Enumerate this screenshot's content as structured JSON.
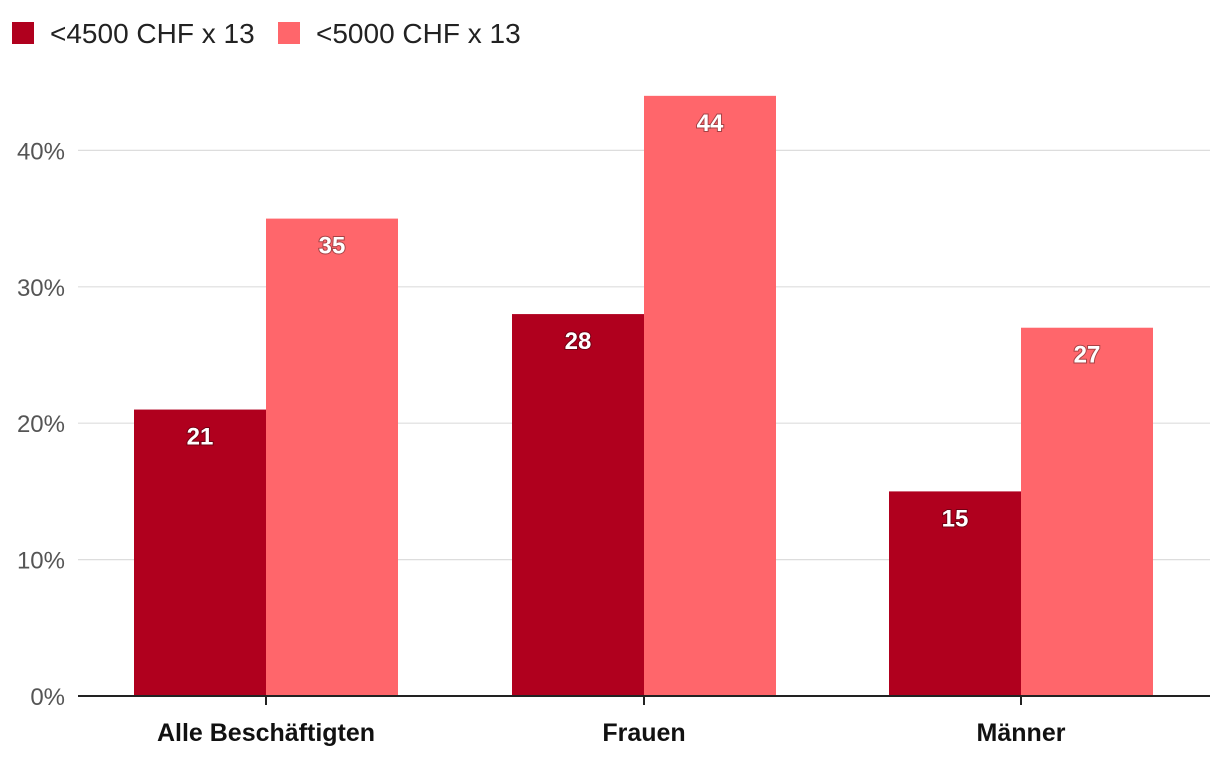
{
  "chart_data": {
    "type": "bar",
    "title": "",
    "xlabel": "",
    "ylabel": "",
    "categories": [
      "Alle Beschäftigten",
      "Frauen",
      "Männer"
    ],
    "series": [
      {
        "name": "<4500 CHF x 13",
        "color": "#b0001e",
        "values": [
          21,
          28,
          15
        ]
      },
      {
        "name": "<5000 CHF x 13",
        "color": "#ff666b",
        "values": [
          35,
          44,
          27
        ]
      }
    ],
    "ylim": [
      0,
      44
    ],
    "yticks": [
      0,
      10,
      20,
      30,
      40
    ],
    "ytick_labels": [
      "0%",
      "10%",
      "20%",
      "30%",
      "40%"
    ],
    "grid": true,
    "legend_position": "top-left",
    "colors": {
      "grid": "#dddddd",
      "axis": "#222222"
    }
  }
}
